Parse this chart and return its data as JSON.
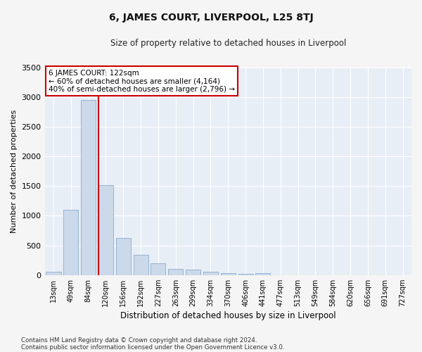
{
  "title": "6, JAMES COURT, LIVERPOOL, L25 8TJ",
  "subtitle": "Size of property relative to detached houses in Liverpool",
  "xlabel": "Distribution of detached houses by size in Liverpool",
  "ylabel": "Number of detached properties",
  "property_label": "6 JAMES COURT: 122sqm",
  "annotation_line1": "← 60% of detached houses are smaller (4,164)",
  "annotation_line2": "40% of semi-detached houses are larger (2,796) →",
  "categories": [
    "13sqm",
    "49sqm",
    "84sqm",
    "120sqm",
    "156sqm",
    "192sqm",
    "227sqm",
    "263sqm",
    "299sqm",
    "334sqm",
    "370sqm",
    "406sqm",
    "441sqm",
    "477sqm",
    "513sqm",
    "549sqm",
    "584sqm",
    "620sqm",
    "656sqm",
    "691sqm",
    "727sqm"
  ],
  "values": [
    50,
    1100,
    2950,
    1520,
    630,
    340,
    200,
    105,
    95,
    55,
    30,
    25,
    30,
    0,
    0,
    0,
    0,
    0,
    0,
    0,
    0
  ],
  "bar_color": "#ccd9ea",
  "bar_edge_color": "#7aa0c8",
  "vline_color": "#cc0000",
  "vline_position": 3,
  "annotation_box_facecolor": "#ffffff",
  "annotation_box_edgecolor": "#cc0000",
  "plot_bg_color": "#e8eef6",
  "grid_color": "#ffffff",
  "fig_bg_color": "#f5f5f5",
  "ylim": [
    0,
    3500
  ],
  "yticks": [
    0,
    500,
    1000,
    1500,
    2000,
    2500,
    3000,
    3500
  ],
  "footnote1": "Contains HM Land Registry data © Crown copyright and database right 2024.",
  "footnote2": "Contains public sector information licensed under the Open Government Licence v3.0."
}
